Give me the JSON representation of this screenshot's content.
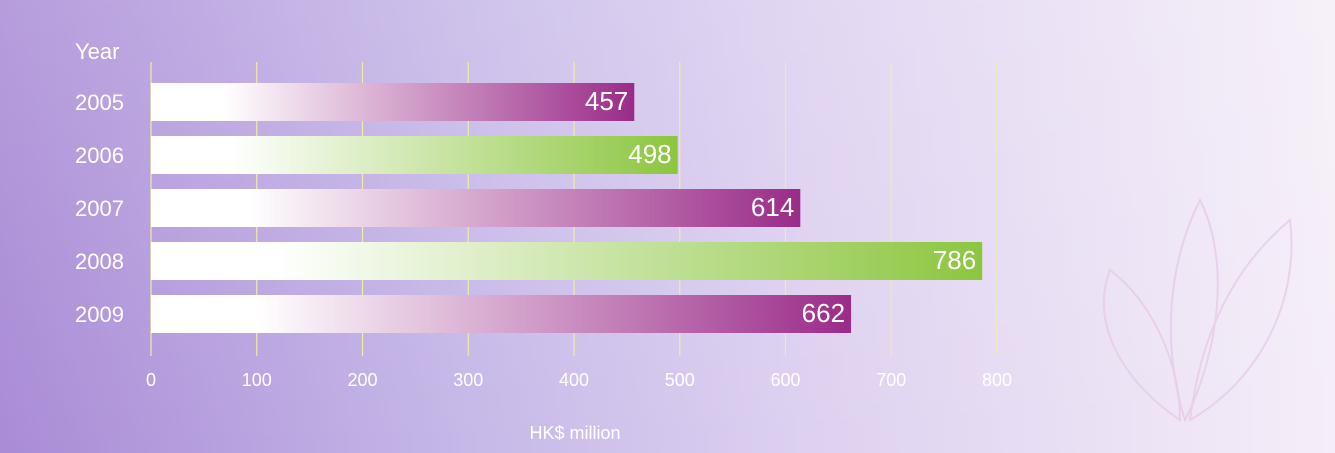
{
  "chart_data": {
    "type": "bar",
    "orientation": "horizontal",
    "y_label": "Year",
    "x_label": "HK$ million",
    "categories": [
      "2005",
      "2006",
      "2007",
      "2008",
      "2009"
    ],
    "values": [
      457,
      498,
      614,
      786,
      662
    ],
    "colors": [
      "#9a2b88",
      "#8cc63f",
      "#9a2b88",
      "#8cc63f",
      "#9a2b88"
    ],
    "xlim": [
      0,
      800
    ],
    "xticks": [
      0,
      100,
      200,
      300,
      400,
      500,
      600,
      700,
      800
    ],
    "grid": true,
    "data_labels": true
  }
}
